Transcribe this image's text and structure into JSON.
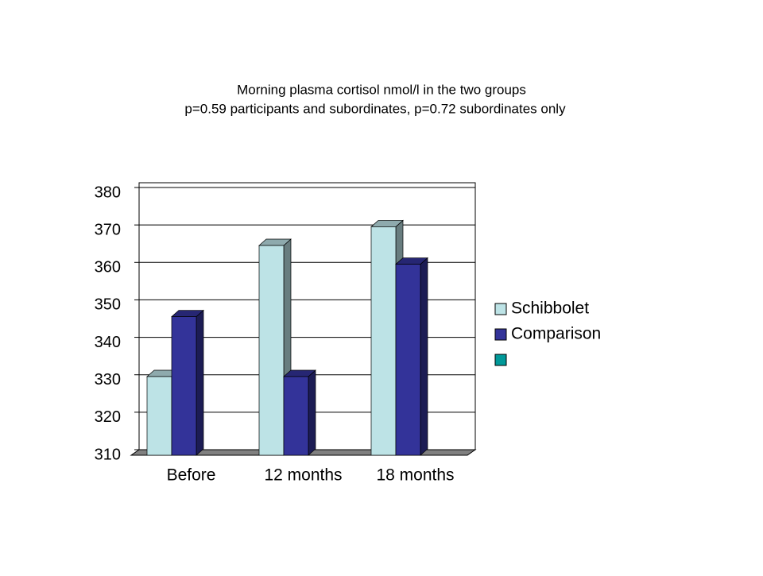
{
  "chart_data": {
    "type": "bar3d",
    "title": "Morning plasma cortisol nmol/l in the two groups",
    "subtitle": "p=0.59 participants and subordinates, p=0.72 subordinates only",
    "categories": [
      "Before",
      "12 months",
      "18 months"
    ],
    "series": [
      {
        "name": "Schibbolet",
        "color": "#bde3e6",
        "values": [
          331,
          366,
          371
        ]
      },
      {
        "name": "Comparison",
        "color": "#333399",
        "values": [
          347,
          331,
          361
        ]
      },
      {
        "name": null,
        "color": "#009999",
        "values": [
          null,
          null,
          null
        ]
      }
    ],
    "ylim": [
      310,
      380
    ],
    "yticks": [
      310,
      320,
      330,
      340,
      350,
      360,
      370,
      380
    ],
    "grid": true
  }
}
